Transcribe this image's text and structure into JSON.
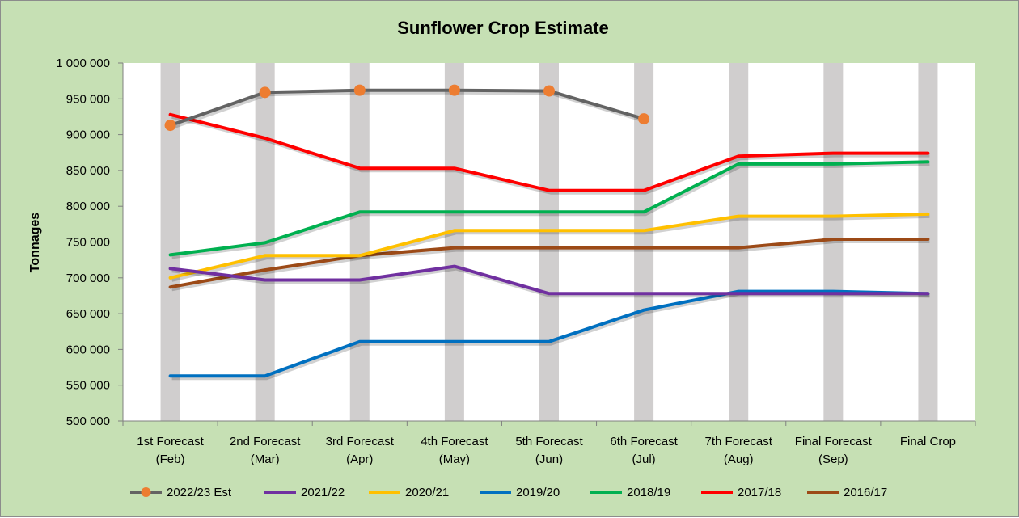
{
  "chart_data": {
    "type": "line",
    "title": "Sunflower Crop Estimate",
    "ylabel": "Tonnages",
    "xlabel": "",
    "ylim": [
      500000,
      1000000
    ],
    "ytick_step": 50000,
    "ytick_labels": [
      "500 000",
      "550 000",
      "600 000",
      "650 000",
      "700 000",
      "750 000",
      "800 000",
      "850 000",
      "900 000",
      "950 000",
      "1 000 000"
    ],
    "grid": false,
    "legend_position": "bottom",
    "categories": [
      [
        "1st Forecast",
        "(Feb)"
      ],
      [
        "2nd Forecast",
        "(Mar)"
      ],
      [
        "3rd Forecast",
        "(Apr)"
      ],
      [
        "4th Forecast",
        "(May)"
      ],
      [
        "5th Forecast",
        "(Jun)"
      ],
      [
        "6th Forecast",
        "(Jul)"
      ],
      [
        "7th Forecast",
        "(Aug)"
      ],
      [
        "Final Forecast",
        "(Sep)"
      ],
      [
        "Final Crop",
        ""
      ]
    ],
    "series": [
      {
        "name": "2022/23 Est",
        "color": "#636363",
        "marker_color": "#ed7d31",
        "marker": true,
        "values": [
          913000,
          959000,
          962000,
          962000,
          961000,
          922000,
          null,
          null,
          null
        ]
      },
      {
        "name": "2021/22",
        "color": "#7030a0",
        "marker": false,
        "values": [
          713000,
          697000,
          697000,
          716000,
          678000,
          678000,
          678000,
          678000,
          678000
        ]
      },
      {
        "name": "2020/21",
        "color": "#ffc000",
        "marker": false,
        "values": [
          700000,
          731000,
          731000,
          766000,
          766000,
          766000,
          786000,
          786000,
          789000
        ]
      },
      {
        "name": "2019/20",
        "color": "#0070c0",
        "marker": false,
        "values": [
          563000,
          563000,
          611000,
          611000,
          611000,
          655000,
          681000,
          681000,
          678000
        ]
      },
      {
        "name": "2018/19",
        "color": "#00b050",
        "marker": false,
        "values": [
          732000,
          749000,
          792000,
          792000,
          792000,
          792000,
          859000,
          859000,
          862000
        ]
      },
      {
        "name": "2017/18",
        "color": "#ff0000",
        "marker": false,
        "values": [
          928000,
          895000,
          853000,
          853000,
          822000,
          822000,
          870000,
          874000,
          874000
        ]
      },
      {
        "name": "2016/17",
        "color": "#9c4a17",
        "marker": false,
        "values": [
          687000,
          711000,
          731000,
          742000,
          742000,
          742000,
          742000,
          754000,
          754000
        ]
      }
    ]
  }
}
